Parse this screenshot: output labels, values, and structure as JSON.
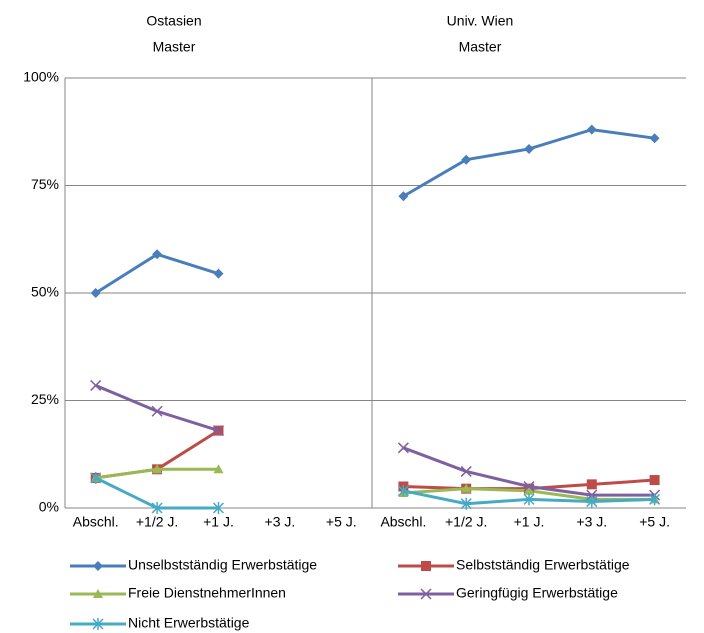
{
  "chart_data": {
    "type": "line",
    "ylim": [
      0,
      100
    ],
    "yticks": [
      {
        "value": 0,
        "label": "0%"
      },
      {
        "value": 25,
        "label": "25%"
      },
      {
        "value": 50,
        "label": "50%"
      },
      {
        "value": 75,
        "label": "75%"
      },
      {
        "value": 100,
        "label": "100%"
      }
    ],
    "grid": true,
    "series": [
      {
        "name": "Unselbstständig Erwerbstätige",
        "color": "#4a7ebb",
        "marker": "diamond"
      },
      {
        "name": "Selbstständig Erwerbstätige",
        "color": "#be4b48",
        "marker": "square"
      },
      {
        "name": "Freie DienstnehmerInnen",
        "color": "#98b954",
        "marker": "triangle"
      },
      {
        "name": "Geringfügig Erwerbstätige",
        "color": "#7d60a0",
        "marker": "x"
      },
      {
        "name": "Nicht Erwerbstätige",
        "color": "#46aac5",
        "marker": "star"
      }
    ],
    "panels": [
      {
        "title": "Ostasien",
        "subtitle": "Master",
        "categories": [
          "Abschl.",
          "+1/2 J.",
          "+1 J.",
          "+3 J.",
          "+5 J."
        ],
        "values": [
          [
            50,
            59,
            54.5,
            null,
            null
          ],
          [
            7,
            9,
            18,
            null,
            null
          ],
          [
            7,
            9,
            9,
            null,
            null
          ],
          [
            28.5,
            22.5,
            18,
            null,
            null
          ],
          [
            7,
            0,
            0,
            null,
            null
          ]
        ]
      },
      {
        "title": "Univ. Wien",
        "subtitle": "Master",
        "categories": [
          "Abschl.",
          "+1/2 J.",
          "+1 J.",
          "+3 J.",
          "+5 J."
        ],
        "values": [
          [
            72.5,
            81,
            83.5,
            88,
            86
          ],
          [
            5,
            4.5,
            4.5,
            5.5,
            6.5
          ],
          [
            3.5,
            4.5,
            4,
            2,
            2
          ],
          [
            14,
            8.5,
            5,
            3,
            3
          ],
          [
            4,
            1,
            2,
            1.5,
            2
          ]
        ]
      }
    ]
  }
}
